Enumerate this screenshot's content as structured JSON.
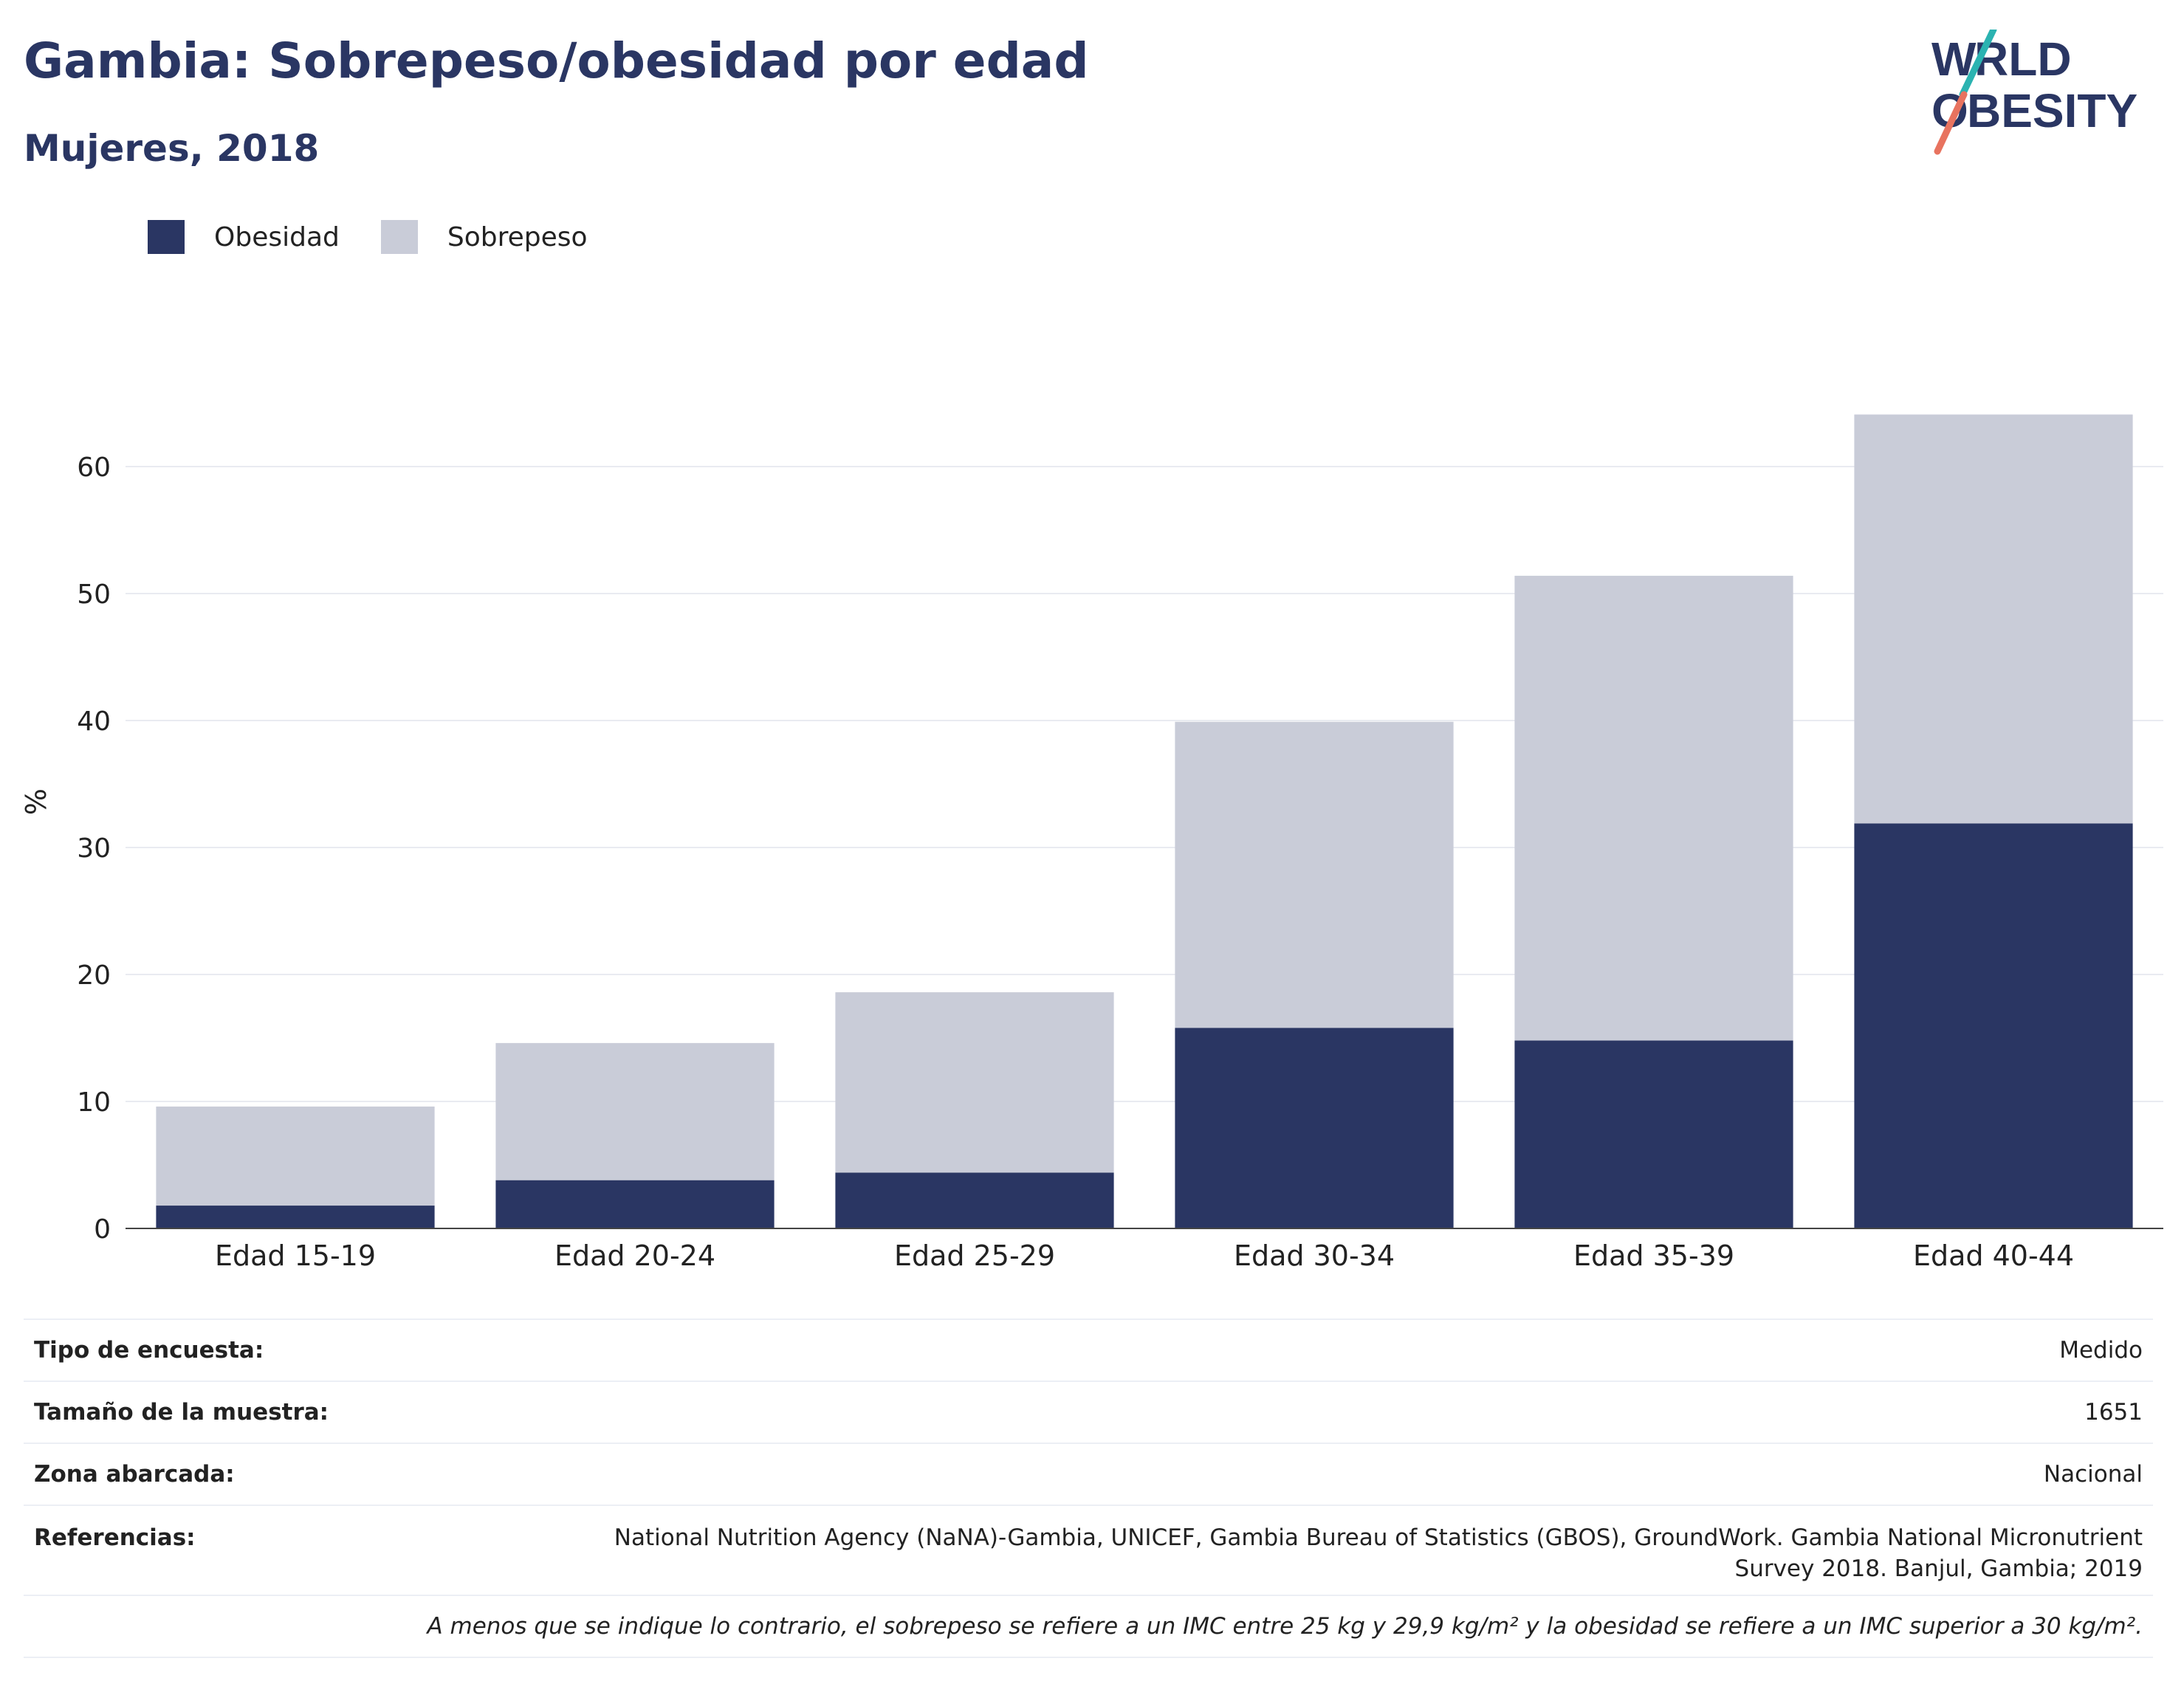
{
  "header": {
    "title": "Gambia: Sobrepeso/obesidad por edad",
    "subtitle": "Mujeres, 2018"
  },
  "logo": {
    "line1": "WORLD",
    "line2": "OBESITY"
  },
  "legend": [
    {
      "label": "Obesidad",
      "color": "#2a3663"
    },
    {
      "label": "Sobrepeso",
      "color": "#c9ccd8"
    }
  ],
  "chart_data": {
    "type": "bar",
    "stacked": true,
    "title": "",
    "xlabel": "",
    "ylabel": "%",
    "ylim": [
      0,
      66
    ],
    "yticks": [
      0,
      10,
      20,
      30,
      40,
      50,
      60
    ],
    "grid": true,
    "legend_position": "top-left",
    "categories": [
      "Edad 15-19",
      "Edad 20-24",
      "Edad 25-29",
      "Edad 30-34",
      "Edad 35-39",
      "Edad 40-44"
    ],
    "series": [
      {
        "name": "Obesidad",
        "color": "#2a3663",
        "values": [
          1.8,
          3.8,
          4.4,
          15.8,
          14.8,
          31.9
        ]
      },
      {
        "name": "Sobrepeso",
        "color": "#c9ccd8",
        "values": [
          7.8,
          10.8,
          14.2,
          24.1,
          36.6,
          32.2
        ]
      }
    ]
  },
  "info": {
    "rows": [
      {
        "label": "Tipo de encuesta:",
        "value": "Medido"
      },
      {
        "label": "Tamaño de la muestra:",
        "value": "1651"
      },
      {
        "label": "Zona abarcada:",
        "value": "Nacional"
      },
      {
        "label": "Referencias:",
        "value_line1": "National Nutrition Agency (NaNA)-Gambia, UNICEF, Gambia Bureau of Statistics (GBOS), GroundWork. Gambia National Micronutrient",
        "value_line2": "Survey 2018. Banjul, Gambia; 2019"
      }
    ],
    "note": "A menos que se indique lo contrario, el sobrepeso se refiere a un IMC entre 25 kg y 29,9 kg/m² y la obesidad se refiere a un IMC superior a 30 kg/m²."
  }
}
